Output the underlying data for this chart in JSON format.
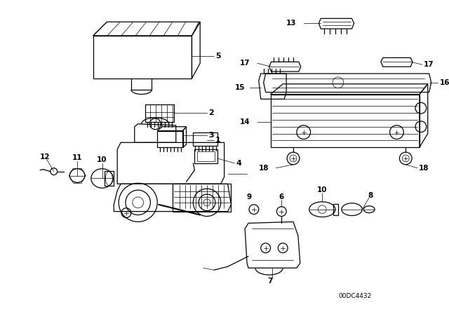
{
  "background_color": "#ffffff",
  "diagram_code": "00DC4432",
  "line_color": "#000000",
  "lw_main": 0.9,
  "lw_thin": 0.5,
  "label_fontsize": 7.5
}
